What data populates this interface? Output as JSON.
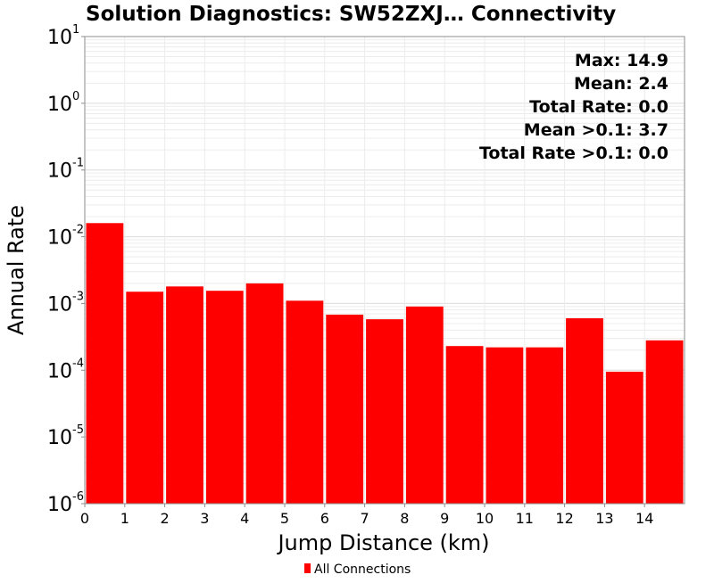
{
  "chart_data": {
    "type": "bar",
    "title": "Solution Diagnostics: SW52ZXJ… Connectivity",
    "xlabel": "Jump Distance (km)",
    "ylabel": "Annual Rate",
    "y_scale": "log",
    "ylim": [
      1e-06,
      10
    ],
    "xlim": [
      0,
      15
    ],
    "x_ticks": [
      "0",
      "1",
      "2",
      "3",
      "4",
      "5",
      "6",
      "7",
      "8",
      "9",
      "10",
      "11",
      "12",
      "13",
      "14"
    ],
    "y_ticks": [
      {
        "base": "10",
        "exp": "1"
      },
      {
        "base": "10",
        "exp": "0"
      },
      {
        "base": "10",
        "exp": "-1"
      },
      {
        "base": "10",
        "exp": "-2"
      },
      {
        "base": "10",
        "exp": "-3"
      },
      {
        "base": "10",
        "exp": "-4"
      },
      {
        "base": "10",
        "exp": "-5"
      },
      {
        "base": "10",
        "exp": "-6"
      }
    ],
    "grid": true,
    "series": [
      {
        "name": "All Connections",
        "color": "#ff0000",
        "bins": [
          {
            "x0": 0,
            "x1": 1,
            "value": 0.016
          },
          {
            "x0": 1,
            "x1": 2,
            "value": 0.0015
          },
          {
            "x0": 2,
            "x1": 3,
            "value": 0.0018
          },
          {
            "x0": 3,
            "x1": 4,
            "value": 0.00155
          },
          {
            "x0": 4,
            "x1": 5,
            "value": 0.002
          },
          {
            "x0": 5,
            "x1": 6,
            "value": 0.0011
          },
          {
            "x0": 6,
            "x1": 7,
            "value": 0.00068
          },
          {
            "x0": 7,
            "x1": 8,
            "value": 0.00058
          },
          {
            "x0": 8,
            "x1": 9,
            "value": 0.0009
          },
          {
            "x0": 9,
            "x1": 10,
            "value": 0.00023
          },
          {
            "x0": 10,
            "x1": 11,
            "value": 0.00022
          },
          {
            "x0": 11,
            "x1": 12,
            "value": 0.00022
          },
          {
            "x0": 12,
            "x1": 13,
            "value": 0.0006
          },
          {
            "x0": 13,
            "x1": 14,
            "value": 9.5e-05
          },
          {
            "x0": 14,
            "x1": 15,
            "value": 0.00028
          }
        ]
      }
    ],
    "annotations": [
      "Max: 14.9",
      "Mean: 2.4",
      "Total Rate: 0.0",
      "Mean >0.1: 3.7",
      "Total Rate >0.1: 0.0"
    ],
    "annotation_position": "top-right",
    "legend": {
      "position": "bottom-center",
      "entries": [
        "All Connections"
      ]
    }
  }
}
